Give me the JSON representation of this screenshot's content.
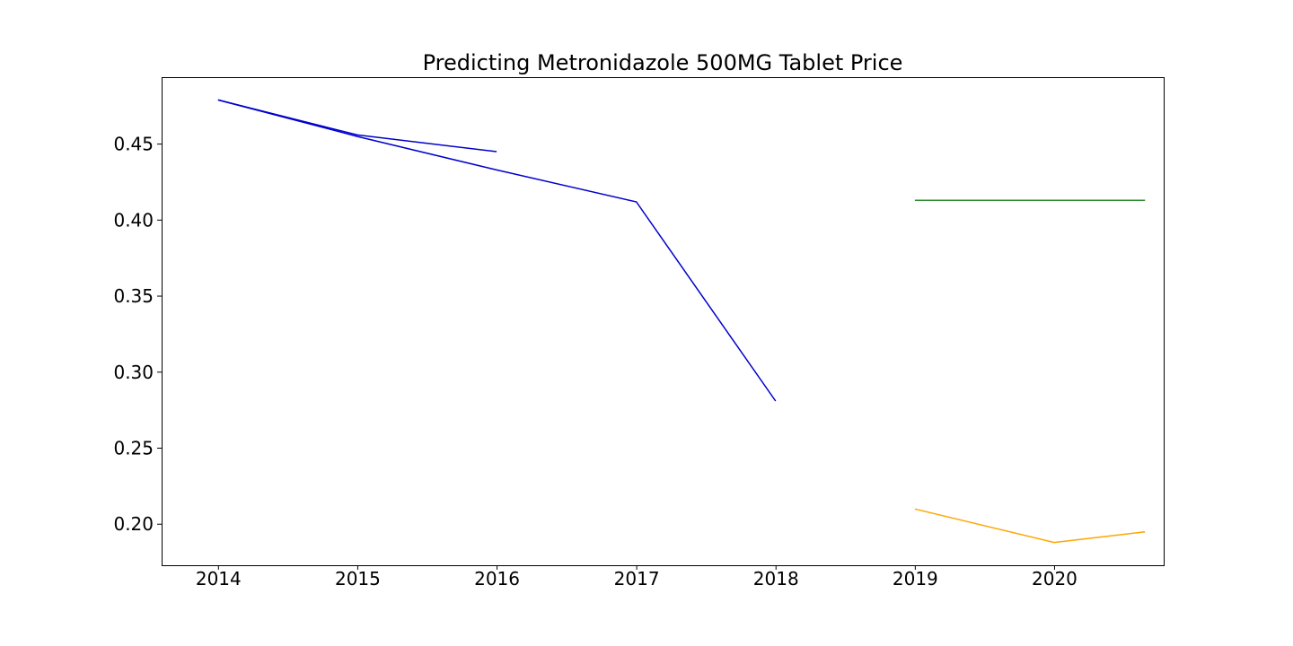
{
  "chart_data": {
    "type": "line",
    "title": "Predicting Metronidazole 500MG Tablet Price",
    "xlabel": "",
    "ylabel": "",
    "xlim": [
      "2013-08-05",
      "2020-10-13"
    ],
    "ylim": [
      0.173,
      0.494
    ],
    "x_ticks": [
      "2014",
      "2015",
      "2016",
      "2017",
      "2018",
      "2019",
      "2020"
    ],
    "y_ticks": [
      "0.20",
      "0.25",
      "0.30",
      "0.35",
      "0.40",
      "0.45"
    ],
    "grid": false,
    "legend": "none",
    "series": [
      {
        "color": "#0000cc",
        "x": [
          "2013-12-31",
          "2014-12-31",
          "2015-12-31",
          "2016-12-31",
          "2017-12-31"
        ],
        "y": [
          0.479,
          0.455,
          0.433,
          0.412,
          0.281
        ]
      },
      {
        "color": "#0000cc",
        "x": [
          "2013-12-31",
          "2014-12-31",
          "2015-12-31"
        ],
        "y": [
          0.479,
          0.456,
          0.445
        ]
      },
      {
        "color": "#2e8b2e",
        "x": [
          "2018-12-31",
          "2019-12-31",
          "2020-08-25"
        ],
        "y": [
          0.413,
          0.413,
          0.413
        ]
      },
      {
        "color": "#ffa500",
        "x": [
          "2018-12-31",
          "2019-12-31",
          "2020-08-25"
        ],
        "y": [
          0.21,
          0.188,
          0.195
        ]
      }
    ]
  }
}
